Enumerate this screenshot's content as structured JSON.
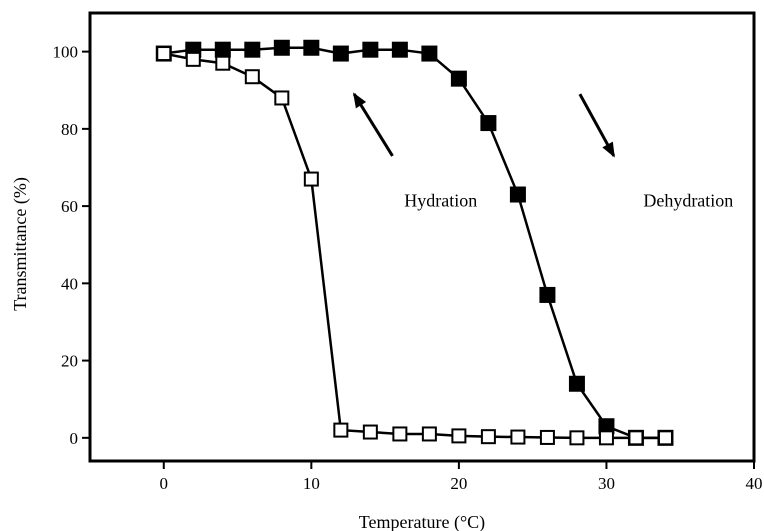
{
  "chart_data": {
    "type": "scatter",
    "title": "",
    "xlabel": "Temperature (°C)",
    "ylabel": "Transmittance (%)",
    "xlim": [
      -5,
      40
    ],
    "ylim": [
      -6,
      110
    ],
    "xticks": [
      0,
      10,
      20,
      30,
      40
    ],
    "yticks": [
      0,
      20,
      40,
      60,
      80,
      100
    ],
    "grid": false,
    "legend": "none",
    "series": [
      {
        "marker": "filled-square",
        "color": "#000000",
        "x": [
          0,
          2,
          4,
          6,
          8,
          10,
          12,
          14,
          16,
          18,
          20,
          22,
          24,
          26,
          28,
          30,
          32,
          34
        ],
        "y": [
          99.5,
          100.5,
          100.5,
          100.5,
          101,
          101,
          99.5,
          100.5,
          100.5,
          99.5,
          93,
          81.5,
          63,
          37,
          14,
          3,
          0,
          0
        ]
      },
      {
        "marker": "open-square",
        "color": "#000000",
        "x": [
          0,
          2,
          4,
          6,
          8,
          10,
          12,
          14,
          16,
          18,
          20,
          22,
          24,
          26,
          28,
          30,
          32,
          34
        ],
        "y": [
          99.5,
          98,
          97,
          93.5,
          88,
          67,
          2,
          1.5,
          1,
          1,
          0.5,
          0.3,
          0.2,
          0.1,
          0,
          0,
          0,
          0
        ]
      }
    ],
    "annotations": [
      {
        "text": "Hydration",
        "x": 16.3,
        "y": 61.5,
        "arrow_from": [
          15.5,
          73
        ],
        "arrow_to": [
          12.9,
          89
        ],
        "text_anchor": "start"
      },
      {
        "text": "Dehydration",
        "x": 32.5,
        "y": 61.5,
        "arrow_from": [
          28.2,
          89
        ],
        "arrow_to": [
          30.5,
          73
        ],
        "text_anchor": "start"
      }
    ]
  }
}
